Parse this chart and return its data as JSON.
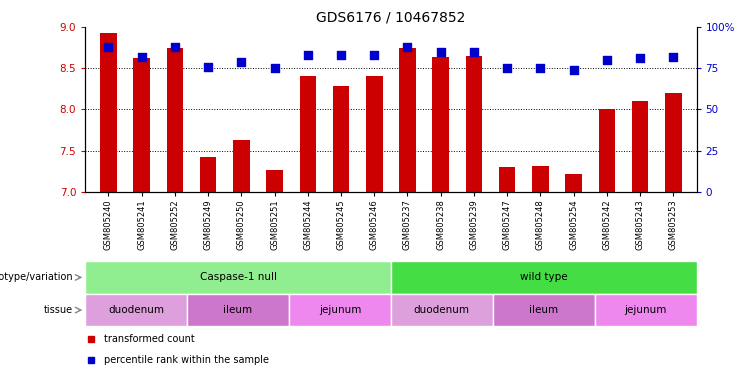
{
  "title": "GDS6176 / 10467852",
  "samples": [
    "GSM805240",
    "GSM805241",
    "GSM805252",
    "GSM805249",
    "GSM805250",
    "GSM805251",
    "GSM805244",
    "GSM805245",
    "GSM805246",
    "GSM805237",
    "GSM805238",
    "GSM805239",
    "GSM805247",
    "GSM805248",
    "GSM805254",
    "GSM805242",
    "GSM805243",
    "GSM805253"
  ],
  "transformed_count": [
    8.93,
    8.62,
    8.74,
    7.42,
    7.63,
    7.27,
    8.4,
    8.28,
    8.4,
    8.74,
    8.64,
    8.65,
    7.3,
    7.31,
    7.22,
    8.0,
    8.1,
    8.2
  ],
  "percentile_rank": [
    88,
    82,
    88,
    76,
    79,
    75,
    83,
    83,
    83,
    88,
    85,
    85,
    75,
    75,
    74,
    80,
    81,
    82
  ],
  "ylim_left": [
    7.0,
    9.0
  ],
  "ylim_right": [
    0,
    100
  ],
  "yticks_left": [
    7.0,
    7.5,
    8.0,
    8.5,
    9.0
  ],
  "yticks_right": [
    0,
    25,
    50,
    75,
    100
  ],
  "ytick_labels_right": [
    "0",
    "25",
    "50",
    "75",
    "100%"
  ],
  "bar_color": "#cc0000",
  "dot_color": "#0000cc",
  "genotype_groups": [
    {
      "label": "Caspase-1 null",
      "start": 0,
      "end": 9,
      "color": "#90ee90"
    },
    {
      "label": "wild type",
      "start": 9,
      "end": 18,
      "color": "#44dd44"
    }
  ],
  "tissue_groups": [
    {
      "label": "duodenum",
      "start": 0,
      "end": 3,
      "color": "#dda0dd"
    },
    {
      "label": "ileum",
      "start": 3,
      "end": 6,
      "color": "#cc77cc"
    },
    {
      "label": "jejunum",
      "start": 6,
      "end": 9,
      "color": "#ee88ee"
    },
    {
      "label": "duodenum",
      "start": 9,
      "end": 12,
      "color": "#dda0dd"
    },
    {
      "label": "ileum",
      "start": 12,
      "end": 15,
      "color": "#cc77cc"
    },
    {
      "label": "jejunum",
      "start": 15,
      "end": 18,
      "color": "#ee88ee"
    }
  ],
  "legend_items": [
    {
      "label": "transformed count",
      "color": "#cc0000"
    },
    {
      "label": "percentile rank within the sample",
      "color": "#0000cc"
    }
  ],
  "title_fontsize": 10,
  "tick_fontsize": 7.5,
  "label_fontsize": 8,
  "dot_size": 30
}
